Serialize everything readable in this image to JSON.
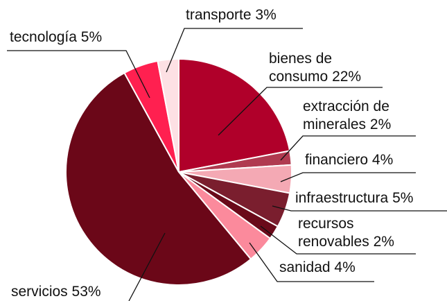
{
  "chart_data": {
    "type": "pie",
    "categories": [
      "bienes de consumo",
      "extracción de minerales",
      "financiero",
      "infraestructura",
      "recursos renovables",
      "sanidad",
      "servicios",
      "tecnología",
      "transporte"
    ],
    "values": [
      22,
      2,
      4,
      5,
      2,
      4,
      53,
      5,
      3
    ],
    "value_labels": [
      "22%",
      "2%",
      "4%",
      "5%",
      "2%",
      "4%",
      "53%",
      "5%",
      "3%"
    ],
    "colors": [
      "#b0002a",
      "#b03a50",
      "#f4a9b4",
      "#7a1e2e",
      "#6a0a1a",
      "#fb8a9c",
      "#6b0718",
      "#ff2050",
      "#fde0e4"
    ]
  }
}
